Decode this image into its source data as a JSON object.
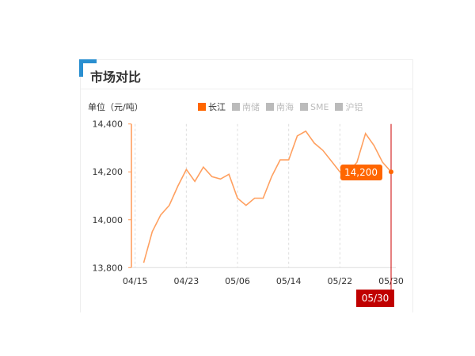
{
  "header": {
    "title": "市场对比"
  },
  "chart_data": {
    "type": "line",
    "ylabel": "单位（元/吨）",
    "ylim": [
      13800,
      14400
    ],
    "yticks": [
      "13,800",
      "14,000",
      "14,200",
      "14,400"
    ],
    "ytick_values": [
      13800,
      14000,
      14200,
      14400
    ],
    "xtick_labels": [
      "04/15",
      "04/23",
      "05/06",
      "05/14",
      "05/22",
      "05/30"
    ],
    "xtick_indices": [
      0,
      6,
      12,
      18,
      24,
      30
    ],
    "legend": [
      {
        "name": "长江",
        "active": true
      },
      {
        "name": "南储",
        "active": false
      },
      {
        "name": "南海",
        "active": false
      },
      {
        "name": "SME",
        "active": false
      },
      {
        "name": "沪铝",
        "active": false
      }
    ],
    "series": [
      {
        "name": "长江",
        "color": "#ff6600",
        "values": [
          null,
          13820,
          13950,
          14020,
          14060,
          14140,
          14210,
          14160,
          14220,
          14180,
          14170,
          14190,
          14090,
          14060,
          14090,
          14090,
          14180,
          14250,
          14250,
          14350,
          14370,
          14320,
          14290,
          14245,
          14200,
          14200,
          14240,
          14360,
          14310,
          14240,
          14200
        ]
      }
    ],
    "tooltip": {
      "value": "14,200",
      "date": "05/30"
    },
    "grid": "vertical-dashed",
    "legend_position": "top"
  }
}
